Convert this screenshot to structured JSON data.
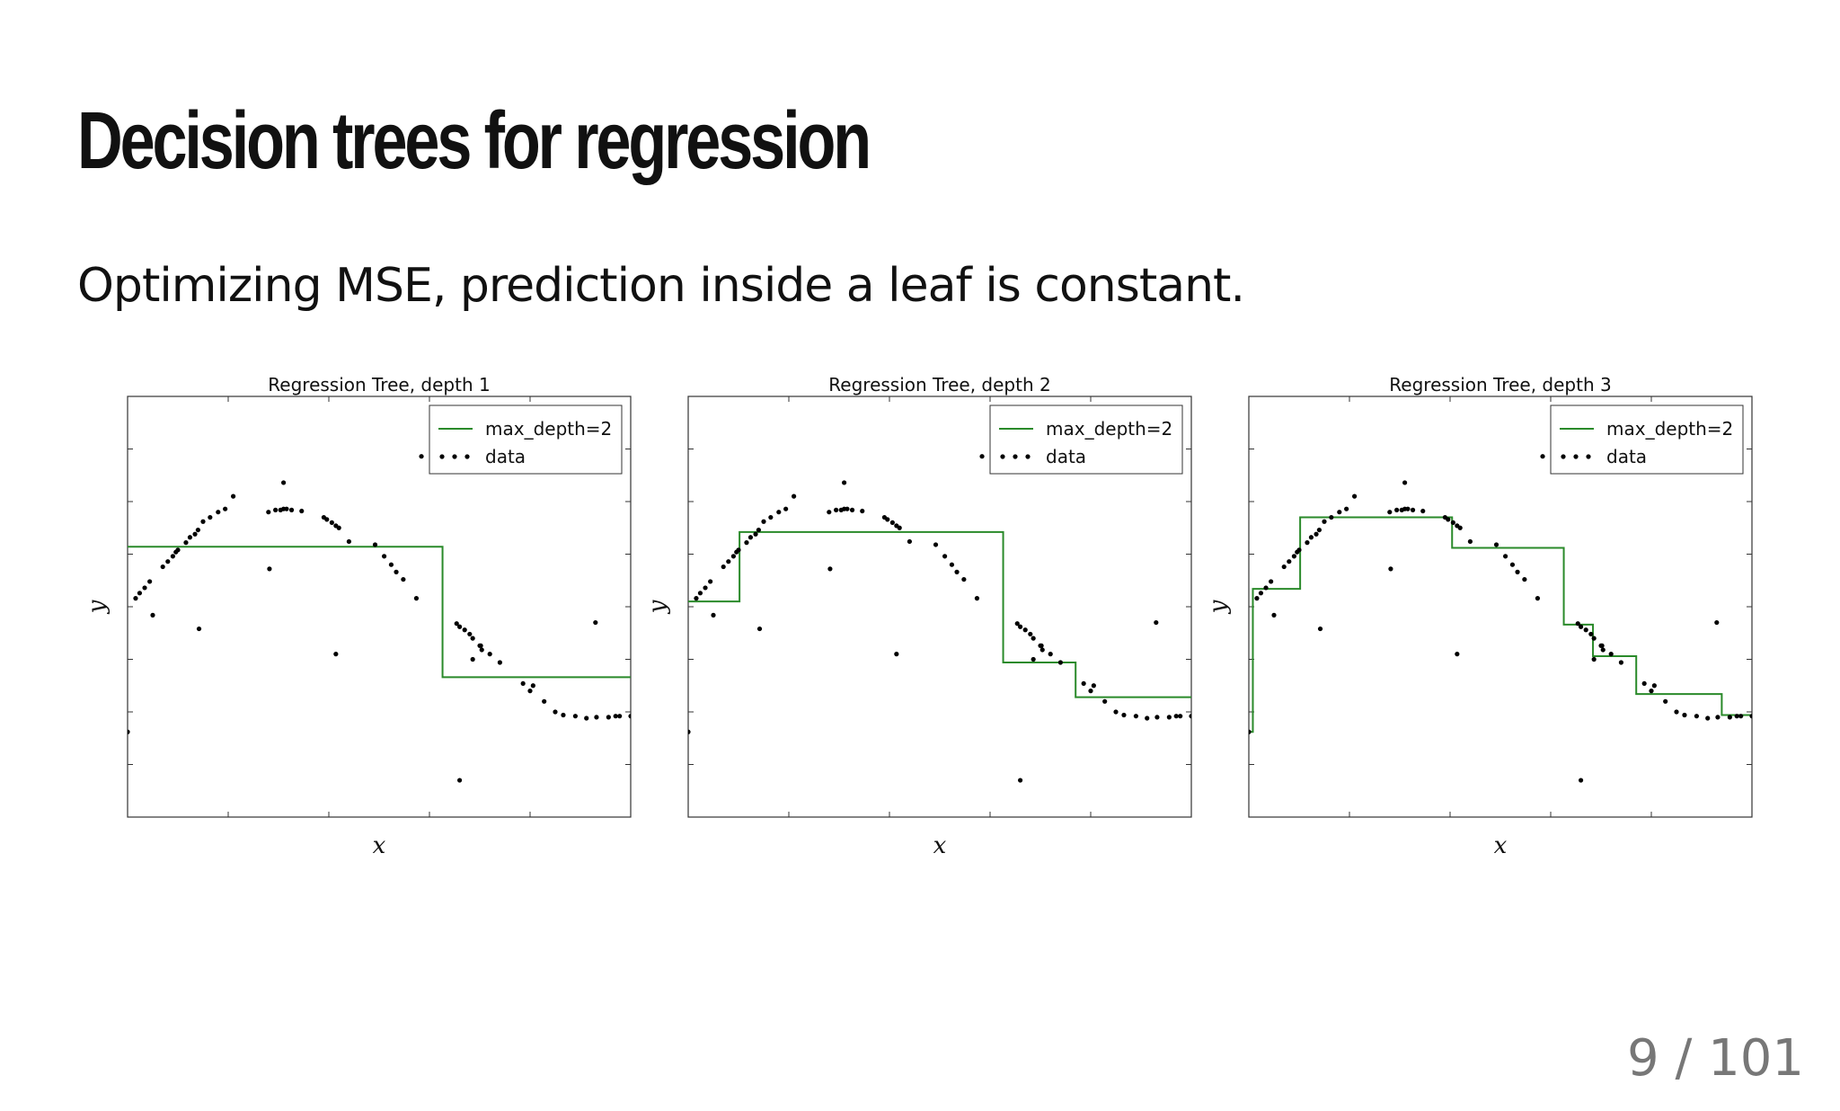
{
  "slide": {
    "title": "Decision trees for regression",
    "subtitle": "Optimizing MSE, prediction inside a leaf is constant.",
    "page": "9 / 101"
  },
  "colors": {
    "prediction_line": "#2a8a2a",
    "data_points": "#000000",
    "axes": "#333333"
  },
  "chart_data": [
    {
      "type": "scatter",
      "title": "Regression Tree, depth 1",
      "xlabel": "x",
      "ylabel": "y",
      "xlim": [
        0,
        5
      ],
      "ylim": [
        -1.5,
        2.5
      ],
      "grid": false,
      "legend": {
        "placement": "top-right",
        "entries": [
          "max_depth=2",
          "data"
        ]
      },
      "series": [
        {
          "name": "max_depth=2",
          "kind": "step",
          "x": [
            0,
            3.13,
            3.13,
            5
          ],
          "y": [
            1.07,
            1.07,
            -0.17,
            -0.17
          ]
        },
        {
          "name": "data",
          "kind": "points",
          "x": [
            0.0,
            0.08,
            0.12,
            0.17,
            0.22,
            0.25,
            0.35,
            0.4,
            0.45,
            0.48,
            0.5,
            0.58,
            0.62,
            0.67,
            0.7,
            0.75,
            0.82,
            0.9,
            0.97,
            1.05,
            1.4,
            1.47,
            1.52,
            1.55,
            1.58,
            1.63,
            1.73,
            1.95,
            1.98,
            2.03,
            2.07,
            2.1,
            2.2,
            2.46,
            2.55,
            2.62,
            2.67,
            2.74,
            2.87,
            3.27,
            3.3,
            3.35,
            3.4,
            3.43,
            3.5,
            3.52,
            3.6,
            3.7,
            3.93,
            4.0,
            4.03,
            4.14,
            4.25,
            4.33,
            4.45,
            4.56,
            4.66,
            4.78,
            4.85,
            4.89,
            5.0,
            0.71,
            1.41,
            1.55,
            2.07,
            3.43,
            3.3,
            4.65,
            2.92,
            3.51
          ],
          "y": [
            -0.69,
            0.58,
            0.63,
            0.68,
            0.74,
            0.42,
            0.88,
            0.93,
            0.98,
            1.02,
            1.04,
            1.11,
            1.16,
            1.19,
            1.23,
            1.31,
            1.35,
            1.4,
            1.43,
            1.55,
            1.4,
            1.42,
            1.42,
            1.43,
            1.43,
            1.42,
            1.41,
            1.35,
            1.33,
            1.3,
            1.27,
            1.25,
            1.12,
            1.09,
            0.98,
            0.9,
            0.83,
            0.76,
            0.58,
            0.34,
            0.31,
            0.28,
            0.24,
            0.2,
            0.13,
            0.09,
            0.05,
            -0.03,
            -0.23,
            -0.3,
            -0.25,
            -0.4,
            -0.5,
            -0.53,
            -0.54,
            -0.56,
            -0.55,
            -0.55,
            -0.54,
            -0.54,
            -0.54,
            0.29,
            0.86,
            1.68,
            0.05,
            0.0,
            -1.15,
            0.35,
            1.93,
            0.13
          ],
          "y_outlier_note": ""
        }
      ]
    },
    {
      "type": "scatter",
      "title": "Regression Tree, depth 2",
      "xlabel": "x",
      "ylabel": "y",
      "xlim": [
        0,
        5
      ],
      "ylim": [
        -1.5,
        2.5
      ],
      "grid": false,
      "legend": {
        "placement": "top-right",
        "entries": [
          "max_depth=2",
          "data"
        ]
      },
      "series": [
        {
          "name": "max_depth=2",
          "kind": "step",
          "x": [
            0,
            0.51,
            0.51,
            3.13,
            3.13,
            3.85,
            3.85,
            5
          ],
          "y": [
            0.55,
            0.55,
            1.21,
            1.21,
            -0.03,
            -0.03,
            -0.36,
            -0.36
          ]
        },
        {
          "name": "data",
          "kind": "points",
          "x": [
            0.0,
            0.08,
            0.12,
            0.17,
            0.22,
            0.25,
            0.35,
            0.4,
            0.45,
            0.48,
            0.5,
            0.58,
            0.62,
            0.67,
            0.7,
            0.75,
            0.82,
            0.9,
            0.97,
            1.05,
            1.4,
            1.47,
            1.52,
            1.55,
            1.58,
            1.63,
            1.73,
            1.95,
            1.98,
            2.03,
            2.07,
            2.1,
            2.2,
            2.46,
            2.55,
            2.62,
            2.67,
            2.74,
            2.87,
            3.27,
            3.3,
            3.35,
            3.4,
            3.43,
            3.5,
            3.52,
            3.6,
            3.7,
            3.93,
            4.0,
            4.03,
            4.14,
            4.25,
            4.33,
            4.45,
            4.56,
            4.66,
            4.78,
            4.85,
            4.89,
            5.0,
            0.71,
            1.41,
            1.55,
            2.07,
            3.43,
            3.3,
            4.65,
            2.92,
            3.51
          ],
          "y": [
            -0.69,
            0.58,
            0.63,
            0.68,
            0.74,
            0.42,
            0.88,
            0.93,
            0.98,
            1.02,
            1.04,
            1.11,
            1.16,
            1.19,
            1.23,
            1.31,
            1.35,
            1.4,
            1.43,
            1.55,
            1.4,
            1.42,
            1.42,
            1.43,
            1.43,
            1.42,
            1.41,
            1.35,
            1.33,
            1.3,
            1.27,
            1.25,
            1.12,
            1.09,
            0.98,
            0.9,
            0.83,
            0.76,
            0.58,
            0.34,
            0.31,
            0.28,
            0.24,
            0.2,
            0.13,
            0.09,
            0.05,
            -0.03,
            -0.23,
            -0.3,
            -0.25,
            -0.4,
            -0.5,
            -0.53,
            -0.54,
            -0.56,
            -0.55,
            -0.55,
            -0.54,
            -0.54,
            -0.54,
            0.29,
            0.86,
            1.68,
            0.05,
            0.0,
            -1.15,
            0.35,
            1.93,
            0.13
          ]
        }
      ]
    },
    {
      "type": "scatter",
      "title": "Regression Tree, depth 3",
      "xlabel": "x",
      "ylabel": "y",
      "xlim": [
        0,
        5
      ],
      "ylim": [
        -1.5,
        2.5
      ],
      "grid": false,
      "legend": {
        "placement": "top-right",
        "entries": [
          "max_depth=2",
          "data"
        ]
      },
      "series": [
        {
          "name": "max_depth=2",
          "kind": "step",
          "x": [
            0,
            0.04,
            0.04,
            0.51,
            0.51,
            2.02,
            2.02,
            3.13,
            3.13,
            3.42,
            3.42,
            3.85,
            3.85,
            4.7,
            4.7,
            5
          ],
          "y": [
            -0.69,
            -0.69,
            0.67,
            0.67,
            1.35,
            1.35,
            1.06,
            1.06,
            0.33,
            0.33,
            0.03,
            0.03,
            -0.33,
            -0.33,
            -0.53,
            -0.53
          ]
        },
        {
          "name": "data",
          "kind": "points",
          "x": [
            0.0,
            0.08,
            0.12,
            0.17,
            0.22,
            0.25,
            0.35,
            0.4,
            0.45,
            0.48,
            0.5,
            0.58,
            0.62,
            0.67,
            0.7,
            0.75,
            0.82,
            0.9,
            0.97,
            1.05,
            1.4,
            1.47,
            1.52,
            1.55,
            1.58,
            1.63,
            1.73,
            1.95,
            1.98,
            2.03,
            2.07,
            2.1,
            2.2,
            2.46,
            2.55,
            2.62,
            2.67,
            2.74,
            2.87,
            3.27,
            3.3,
            3.35,
            3.4,
            3.43,
            3.5,
            3.52,
            3.6,
            3.7,
            3.93,
            4.0,
            4.03,
            4.14,
            4.25,
            4.33,
            4.45,
            4.56,
            4.66,
            4.78,
            4.85,
            4.89,
            5.0,
            0.71,
            1.41,
            1.55,
            2.07,
            3.43,
            3.3,
            4.65,
            2.92,
            3.51
          ],
          "y": [
            -0.69,
            0.58,
            0.63,
            0.68,
            0.74,
            0.42,
            0.88,
            0.93,
            0.98,
            1.02,
            1.04,
            1.11,
            1.16,
            1.19,
            1.23,
            1.31,
            1.35,
            1.4,
            1.43,
            1.55,
            1.4,
            1.42,
            1.42,
            1.43,
            1.43,
            1.42,
            1.41,
            1.35,
            1.33,
            1.3,
            1.27,
            1.25,
            1.12,
            1.09,
            0.98,
            0.9,
            0.83,
            0.76,
            0.58,
            0.34,
            0.31,
            0.28,
            0.24,
            0.2,
            0.13,
            0.09,
            0.05,
            -0.03,
            -0.23,
            -0.3,
            -0.25,
            -0.4,
            -0.5,
            -0.53,
            -0.54,
            -0.56,
            -0.55,
            -0.55,
            -0.54,
            -0.54,
            -0.54,
            0.29,
            0.86,
            1.68,
            0.05,
            0.0,
            -1.15,
            0.35,
            1.93,
            0.13
          ]
        }
      ]
    }
  ]
}
